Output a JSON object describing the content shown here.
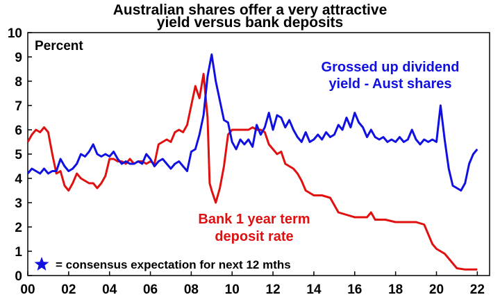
{
  "chart_data": {
    "type": "line",
    "title_lines": [
      "Australian shares offer a very attractive",
      "yield versus bank deposits"
    ],
    "ylabel": "Percent",
    "xlabel": "",
    "xlim": [
      2000,
      2022.6
    ],
    "ylim": [
      0,
      10
    ],
    "x_ticks": [
      {
        "value": 2000,
        "label": "00"
      },
      {
        "value": 2002,
        "label": "02"
      },
      {
        "value": 2004,
        "label": "04"
      },
      {
        "value": 2006,
        "label": "06"
      },
      {
        "value": 2008,
        "label": "08"
      },
      {
        "value": 2010,
        "label": "10"
      },
      {
        "value": 2012,
        "label": "12"
      },
      {
        "value": 2014,
        "label": "14"
      },
      {
        "value": 2016,
        "label": "16"
      },
      {
        "value": 2018,
        "label": "18"
      },
      {
        "value": 2020,
        "label": "20"
      },
      {
        "value": 2022,
        "label": "22"
      }
    ],
    "y_ticks": [
      0,
      1,
      2,
      3,
      4,
      5,
      6,
      7,
      8,
      9,
      10
    ],
    "grid": false,
    "colors": {
      "dividend": "#1010e0",
      "deposit": "#e01010",
      "star": "#1010e0"
    },
    "series": [
      {
        "name": "Grossed up dividend yield - Aust shares",
        "label_lines": [
          "Grossed up dividend",
          "yield - Aust shares"
        ],
        "color": "#1010e0",
        "points": [
          [
            2000.0,
            4.2
          ],
          [
            2000.2,
            4.4
          ],
          [
            2000.4,
            4.3
          ],
          [
            2000.6,
            4.2
          ],
          [
            2000.8,
            4.4
          ],
          [
            2001.0,
            4.2
          ],
          [
            2001.2,
            4.3
          ],
          [
            2001.4,
            4.3
          ],
          [
            2001.6,
            4.8
          ],
          [
            2001.8,
            4.5
          ],
          [
            2002.0,
            4.3
          ],
          [
            2002.2,
            4.4
          ],
          [
            2002.4,
            4.6
          ],
          [
            2002.6,
            5.0
          ],
          [
            2002.8,
            4.9
          ],
          [
            2003.0,
            5.1
          ],
          [
            2003.2,
            5.4
          ],
          [
            2003.4,
            5.0
          ],
          [
            2003.6,
            4.9
          ],
          [
            2003.8,
            5.0
          ],
          [
            2004.0,
            4.9
          ],
          [
            2004.2,
            5.1
          ],
          [
            2004.4,
            4.8
          ],
          [
            2004.6,
            4.6
          ],
          [
            2004.8,
            4.7
          ],
          [
            2005.0,
            4.6
          ],
          [
            2005.2,
            4.6
          ],
          [
            2005.4,
            4.7
          ],
          [
            2005.6,
            4.6
          ],
          [
            2005.8,
            5.0
          ],
          [
            2006.0,
            4.8
          ],
          [
            2006.2,
            4.5
          ],
          [
            2006.4,
            4.7
          ],
          [
            2006.6,
            4.8
          ],
          [
            2006.8,
            4.6
          ],
          [
            2007.0,
            4.4
          ],
          [
            2007.2,
            4.6
          ],
          [
            2007.4,
            4.7
          ],
          [
            2007.6,
            4.5
          ],
          [
            2007.8,
            4.3
          ],
          [
            2008.0,
            5.1
          ],
          [
            2008.2,
            5.2
          ],
          [
            2008.4,
            5.8
          ],
          [
            2008.6,
            6.6
          ],
          [
            2008.8,
            8.2
          ],
          [
            2009.0,
            9.1
          ],
          [
            2009.2,
            8.0
          ],
          [
            2009.4,
            7.2
          ],
          [
            2009.6,
            6.4
          ],
          [
            2009.8,
            6.3
          ],
          [
            2010.0,
            5.5
          ],
          [
            2010.2,
            5.2
          ],
          [
            2010.4,
            5.6
          ],
          [
            2010.6,
            5.4
          ],
          [
            2010.8,
            5.6
          ],
          [
            2011.0,
            5.3
          ],
          [
            2011.2,
            6.2
          ],
          [
            2011.4,
            5.8
          ],
          [
            2011.6,
            6.1
          ],
          [
            2011.8,
            6.7
          ],
          [
            2012.0,
            6.0
          ],
          [
            2012.2,
            6.6
          ],
          [
            2012.4,
            6.5
          ],
          [
            2012.6,
            6.1
          ],
          [
            2012.8,
            6.4
          ],
          [
            2013.0,
            6.0
          ],
          [
            2013.2,
            5.7
          ],
          [
            2013.4,
            5.5
          ],
          [
            2013.6,
            5.9
          ],
          [
            2013.8,
            5.5
          ],
          [
            2014.0,
            5.6
          ],
          [
            2014.2,
            5.8
          ],
          [
            2014.4,
            5.6
          ],
          [
            2014.6,
            5.9
          ],
          [
            2014.8,
            5.7
          ],
          [
            2015.0,
            5.8
          ],
          [
            2015.2,
            6.2
          ],
          [
            2015.4,
            6.0
          ],
          [
            2015.6,
            6.5
          ],
          [
            2015.8,
            6.1
          ],
          [
            2016.0,
            6.7
          ],
          [
            2016.2,
            6.3
          ],
          [
            2016.4,
            6.1
          ],
          [
            2016.6,
            5.7
          ],
          [
            2016.8,
            6.0
          ],
          [
            2017.0,
            5.7
          ],
          [
            2017.2,
            5.6
          ],
          [
            2017.4,
            5.7
          ],
          [
            2017.6,
            5.5
          ],
          [
            2017.8,
            5.6
          ],
          [
            2018.0,
            5.5
          ],
          [
            2018.2,
            5.7
          ],
          [
            2018.4,
            5.5
          ],
          [
            2018.6,
            5.6
          ],
          [
            2018.8,
            6.0
          ],
          [
            2019.0,
            5.6
          ],
          [
            2019.2,
            5.4
          ],
          [
            2019.4,
            5.6
          ],
          [
            2019.6,
            5.5
          ],
          [
            2019.8,
            5.6
          ],
          [
            2020.0,
            5.5
          ],
          [
            2020.2,
            7.0
          ],
          [
            2020.4,
            5.6
          ],
          [
            2020.6,
            4.4
          ],
          [
            2020.8,
            3.7
          ],
          [
            2021.0,
            3.6
          ],
          [
            2021.2,
            3.5
          ],
          [
            2021.4,
            3.8
          ],
          [
            2021.6,
            4.6
          ],
          [
            2021.8,
            5.0
          ],
          [
            2022.0,
            5.2
          ]
        ]
      },
      {
        "name": "Bank 1 year term deposit rate",
        "label_lines": [
          "Bank 1 year term",
          "deposit rate"
        ],
        "color": "#e01010",
        "points": [
          [
            2000.0,
            5.5
          ],
          [
            2000.2,
            5.8
          ],
          [
            2000.4,
            6.0
          ],
          [
            2000.6,
            5.9
          ],
          [
            2000.8,
            6.1
          ],
          [
            2001.0,
            5.9
          ],
          [
            2001.2,
            5.0
          ],
          [
            2001.4,
            4.2
          ],
          [
            2001.6,
            4.3
          ],
          [
            2001.8,
            3.7
          ],
          [
            2002.0,
            3.5
          ],
          [
            2002.2,
            3.8
          ],
          [
            2002.4,
            4.2
          ],
          [
            2002.6,
            4.0
          ],
          [
            2002.8,
            3.9
          ],
          [
            2003.0,
            3.8
          ],
          [
            2003.2,
            3.8
          ],
          [
            2003.4,
            3.6
          ],
          [
            2003.6,
            3.8
          ],
          [
            2003.8,
            4.1
          ],
          [
            2004.0,
            4.8
          ],
          [
            2004.2,
            4.8
          ],
          [
            2004.4,
            4.7
          ],
          [
            2004.6,
            4.7
          ],
          [
            2004.8,
            4.6
          ],
          [
            2005.0,
            4.8
          ],
          [
            2005.2,
            4.6
          ],
          [
            2005.4,
            4.7
          ],
          [
            2005.6,
            4.7
          ],
          [
            2005.8,
            4.6
          ],
          [
            2006.0,
            4.7
          ],
          [
            2006.2,
            4.6
          ],
          [
            2006.4,
            5.4
          ],
          [
            2006.6,
            5.5
          ],
          [
            2006.8,
            5.6
          ],
          [
            2007.0,
            5.5
          ],
          [
            2007.2,
            5.9
          ],
          [
            2007.4,
            6.0
          ],
          [
            2007.6,
            5.9
          ],
          [
            2007.8,
            6.2
          ],
          [
            2008.0,
            7.0
          ],
          [
            2008.2,
            7.8
          ],
          [
            2008.4,
            7.3
          ],
          [
            2008.6,
            8.3
          ],
          [
            2008.8,
            6.5
          ],
          [
            2008.9,
            3.8
          ],
          [
            2009.0,
            3.5
          ],
          [
            2009.2,
            3.0
          ],
          [
            2009.4,
            3.6
          ],
          [
            2009.6,
            4.5
          ],
          [
            2009.8,
            5.8
          ],
          [
            2010.0,
            6.0
          ],
          [
            2010.4,
            6.0
          ],
          [
            2010.8,
            6.0
          ],
          [
            2011.0,
            6.1
          ],
          [
            2011.2,
            6.0
          ],
          [
            2011.4,
            6.0
          ],
          [
            2011.6,
            5.9
          ],
          [
            2011.8,
            5.4
          ],
          [
            2012.0,
            5.2
          ],
          [
            2012.2,
            5.0
          ],
          [
            2012.4,
            5.1
          ],
          [
            2012.6,
            4.6
          ],
          [
            2012.8,
            4.5
          ],
          [
            2013.0,
            4.4
          ],
          [
            2013.2,
            4.2
          ],
          [
            2013.4,
            3.9
          ],
          [
            2013.6,
            3.5
          ],
          [
            2013.8,
            3.4
          ],
          [
            2014.0,
            3.3
          ],
          [
            2014.4,
            3.3
          ],
          [
            2014.8,
            3.2
          ],
          [
            2015.0,
            2.9
          ],
          [
            2015.2,
            2.6
          ],
          [
            2015.6,
            2.5
          ],
          [
            2016.0,
            2.4
          ],
          [
            2016.4,
            2.4
          ],
          [
            2016.6,
            2.4
          ],
          [
            2016.8,
            2.6
          ],
          [
            2017.0,
            2.3
          ],
          [
            2017.5,
            2.3
          ],
          [
            2018.0,
            2.2
          ],
          [
            2018.5,
            2.2
          ],
          [
            2019.0,
            2.2
          ],
          [
            2019.4,
            2.1
          ],
          [
            2019.6,
            1.7
          ],
          [
            2019.8,
            1.3
          ],
          [
            2020.0,
            1.1
          ],
          [
            2020.2,
            1.0
          ],
          [
            2020.4,
            0.9
          ],
          [
            2020.6,
            0.7
          ],
          [
            2020.8,
            0.5
          ],
          [
            2021.0,
            0.3
          ],
          [
            2021.4,
            0.25
          ],
          [
            2021.8,
            0.25
          ],
          [
            2022.0,
            0.25
          ]
        ]
      }
    ],
    "legend_note": "= consensus expectation for next 12 mths",
    "legend_placement": "bottom-left"
  }
}
